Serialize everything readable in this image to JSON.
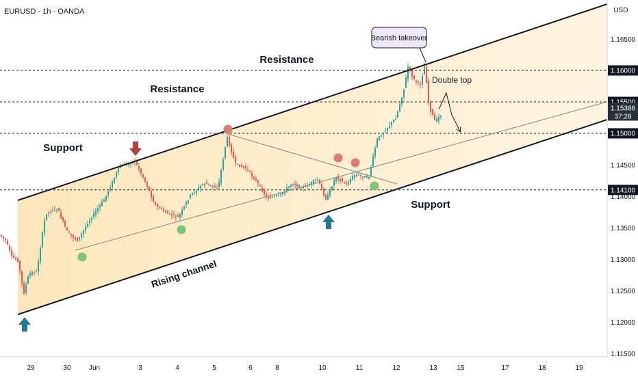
{
  "header": {
    "symbol": "EURUSD · 1h · OANDA",
    "currency": "USD"
  },
  "chart_data": {
    "type": "candlestick",
    "ylim": [
      1.1135,
      1.1705
    ],
    "grid": false,
    "y_ticks": [
      "1.16500",
      "1.16000",
      "1.15500",
      "1.15000",
      "1.14500",
      "1.14000",
      "1.13500",
      "1.13000",
      "1.12500",
      "1.12000",
      "1.11500"
    ],
    "x_ticks": [
      "29",
      "30",
      "Jun",
      "3",
      "4",
      "5",
      "6",
      "8",
      "10",
      "11",
      "12",
      "13",
      "15",
      "17",
      "18",
      "19"
    ],
    "price_labels": [
      {
        "label": "1.16000",
        "value": 1.16,
        "style": "dark"
      },
      {
        "label": "1.15500",
        "value": 1.155,
        "style": "dark"
      },
      {
        "label": "1.15386",
        "sub": "37:28",
        "value": 1.15386,
        "style": "current"
      },
      {
        "label": "1.15000",
        "value": 1.15,
        "style": "dark"
      },
      {
        "label": "1.14100",
        "value": 1.141,
        "style": "dark"
      }
    ],
    "horizontal_levels": [
      1.16,
      1.155,
      1.15,
      1.141
    ],
    "annotations": {
      "bearish_takeover": "Bearish takeover",
      "resistance_upper": "Resistance",
      "resistance_lower": "Resistance",
      "support_left": "Support",
      "support_right": "Support",
      "double_top": "Double top",
      "rising_channel": "Rising channel"
    },
    "colors": {
      "up": "#26a69a",
      "down": "#ef5350",
      "channel_fill": "#fde3b3",
      "red_marker": "#dc7c72",
      "green_marker": "#7cc47a",
      "arrow_red": "#b3403a",
      "arrow_blue": "#1f7a95",
      "callout_bg": "#ede7f6"
    }
  }
}
